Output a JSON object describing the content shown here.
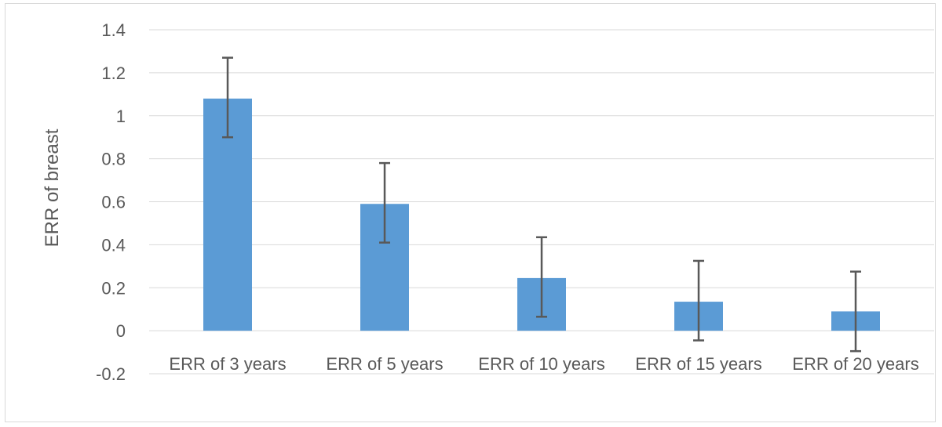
{
  "chart_data": {
    "type": "bar",
    "title": "",
    "xlabel": "",
    "ylabel": "ERR of breast",
    "categories": [
      "ERR of 3 years",
      "ERR of 5 years",
      "ERR of 10 years",
      "ERR of 15 years",
      "ERR of 20 years"
    ],
    "series": [
      {
        "values": [
          1.08,
          0.59,
          0.245,
          0.135,
          0.09
        ],
        "error_low": [
          0.9,
          0.41,
          0.065,
          -0.045,
          -0.095
        ],
        "error_high": [
          1.27,
          0.78,
          0.435,
          0.325,
          0.275
        ]
      }
    ],
    "ylim": [
      -0.2,
      1.4
    ],
    "yticks": [
      "-0.2",
      "0",
      "0.2",
      "0.4",
      "0.6",
      "0.8",
      "1",
      "1.2",
      "1.4"
    ],
    "grid": true,
    "legend": "none",
    "colors": {
      "bar": "#5B9BD5",
      "error_bar": "#595959",
      "grid": "#d9d9d9",
      "text": "#595959"
    }
  }
}
